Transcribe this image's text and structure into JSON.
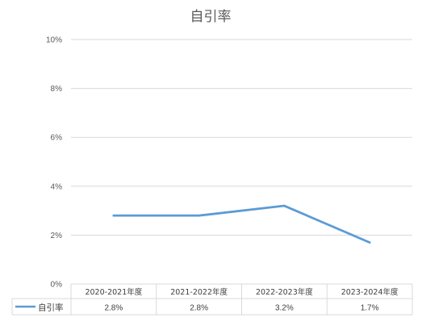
{
  "chart_data": {
    "type": "line",
    "title": "自引率",
    "categories": [
      "2020-2021年度",
      "2021-2022年度",
      "2022-2023年度",
      "2023-2024年度"
    ],
    "series": [
      {
        "name": "自引率",
        "values": [
          2.8,
          2.8,
          3.2,
          1.7
        ],
        "labels": [
          "2.8%",
          "2.8%",
          "3.2%",
          "1.7%"
        ],
        "color": "#5b9bd5"
      }
    ],
    "ylim": [
      0,
      10
    ],
    "yticks": [
      "0%",
      "2%",
      "4%",
      "6%",
      "8%",
      "10%"
    ],
    "grid": true,
    "legend": "data-table"
  }
}
